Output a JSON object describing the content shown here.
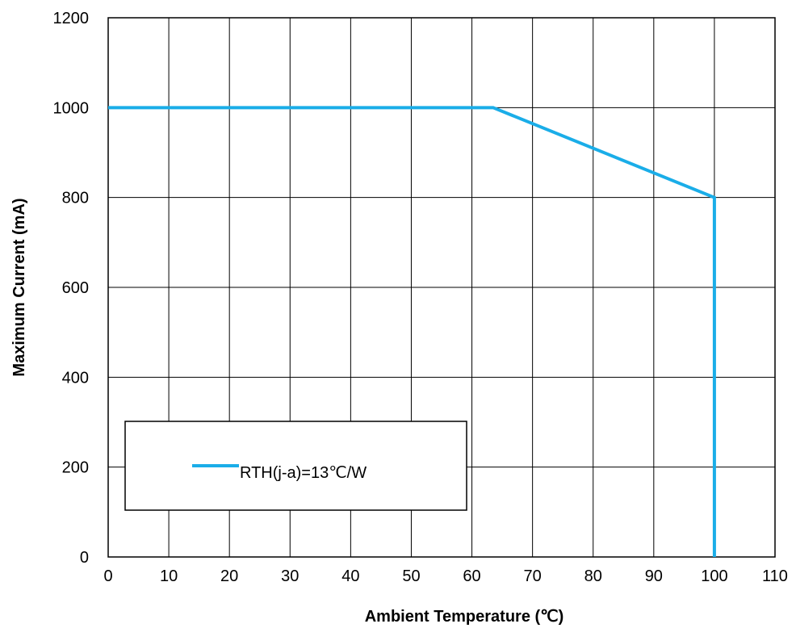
{
  "chart_data": {
    "type": "line",
    "xlabel": "Ambient Temperature (℃)",
    "ylabel": "Maximum Current (mA)",
    "xlim": [
      0,
      110
    ],
    "ylim": [
      0,
      1200
    ],
    "x_ticks": [
      0,
      10,
      20,
      30,
      40,
      50,
      60,
      70,
      80,
      90,
      100,
      110
    ],
    "y_ticks": [
      0,
      200,
      400,
      600,
      800,
      1000,
      1200
    ],
    "grid": true,
    "legend_position": "bottom-left",
    "series": [
      {
        "name": "RTH(j-a)=13℃/W",
        "color": "#1aade8",
        "points": [
          {
            "x": 0,
            "y": 1000
          },
          {
            "x": 63.5,
            "y": 1000
          },
          {
            "x": 100,
            "y": 800
          },
          {
            "x": 100,
            "y": 0
          }
        ]
      }
    ]
  }
}
